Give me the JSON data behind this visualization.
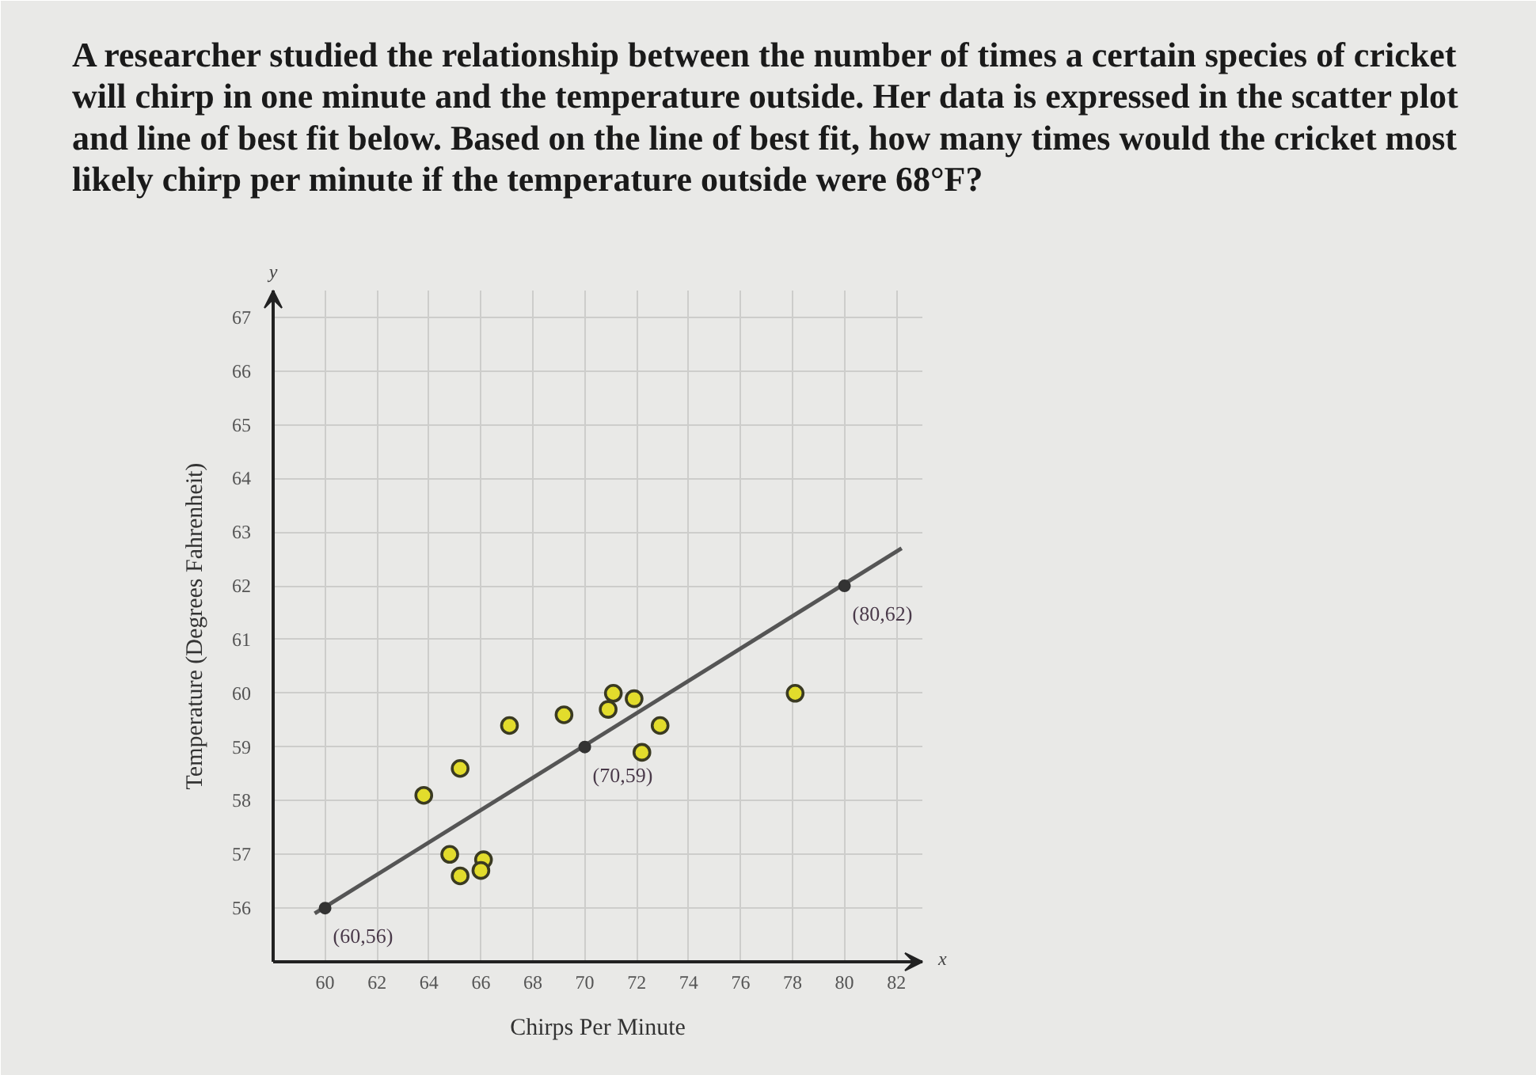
{
  "chart_data": {
    "type": "scatter",
    "title": "A researcher studied the relationship between the number of times a certain species of cricket will chirp in one minute and the temperature outside. Her data is expressed in the scatter plot and line of best fit below. Based on the line of best fit, how many times would the cricket most likely chirp per minute if the temperature outside were 68°F?",
    "xlabel": "Chirps Per Minute",
    "ylabel": "Temperature (Degrees Fahrenheit)",
    "annotations": [
      "x",
      "y",
      {
        "text": "(60,56)",
        "x": 60,
        "y": 56
      },
      {
        "text": "(70,59)",
        "x": 70,
        "y": 59
      },
      {
        "text": "(80,62)",
        "x": 80,
        "y": 62
      }
    ],
    "xlim": [
      58,
      83
    ],
    "ylim": [
      55,
      67.5
    ],
    "xticks": [
      60,
      62,
      64,
      66,
      68,
      70,
      72,
      74,
      76,
      78,
      80,
      82
    ],
    "yticks": [
      56,
      57,
      58,
      59,
      60,
      61,
      62,
      63,
      64,
      65,
      66,
      67
    ],
    "grid": true,
    "marker": "circle",
    "series": [
      {
        "color": "#e2dc2c",
        "x": [
          67.1,
          69.2,
          65.2,
          63.8,
          64.8,
          65.2,
          66.1,
          66.0,
          71.1,
          70.9,
          71.9,
          72.9,
          78.1,
          72.2
        ],
        "values": [
          59.4,
          59.6,
          58.6,
          58.1,
          57.0,
          56.6,
          56.9,
          56.7,
          60.0,
          59.7,
          59.9,
          59.4,
          60.0,
          58.9
        ]
      },
      {
        "type": "line",
        "marker": "none",
        "color": "#555555",
        "x": [
          59.6,
          82.2
        ],
        "values": [
          55.9,
          62.7
        ]
      },
      {
        "color": "#333333",
        "x": [
          60,
          70,
          80
        ],
        "values": [
          56,
          59,
          62
        ]
      }
    ]
  }
}
